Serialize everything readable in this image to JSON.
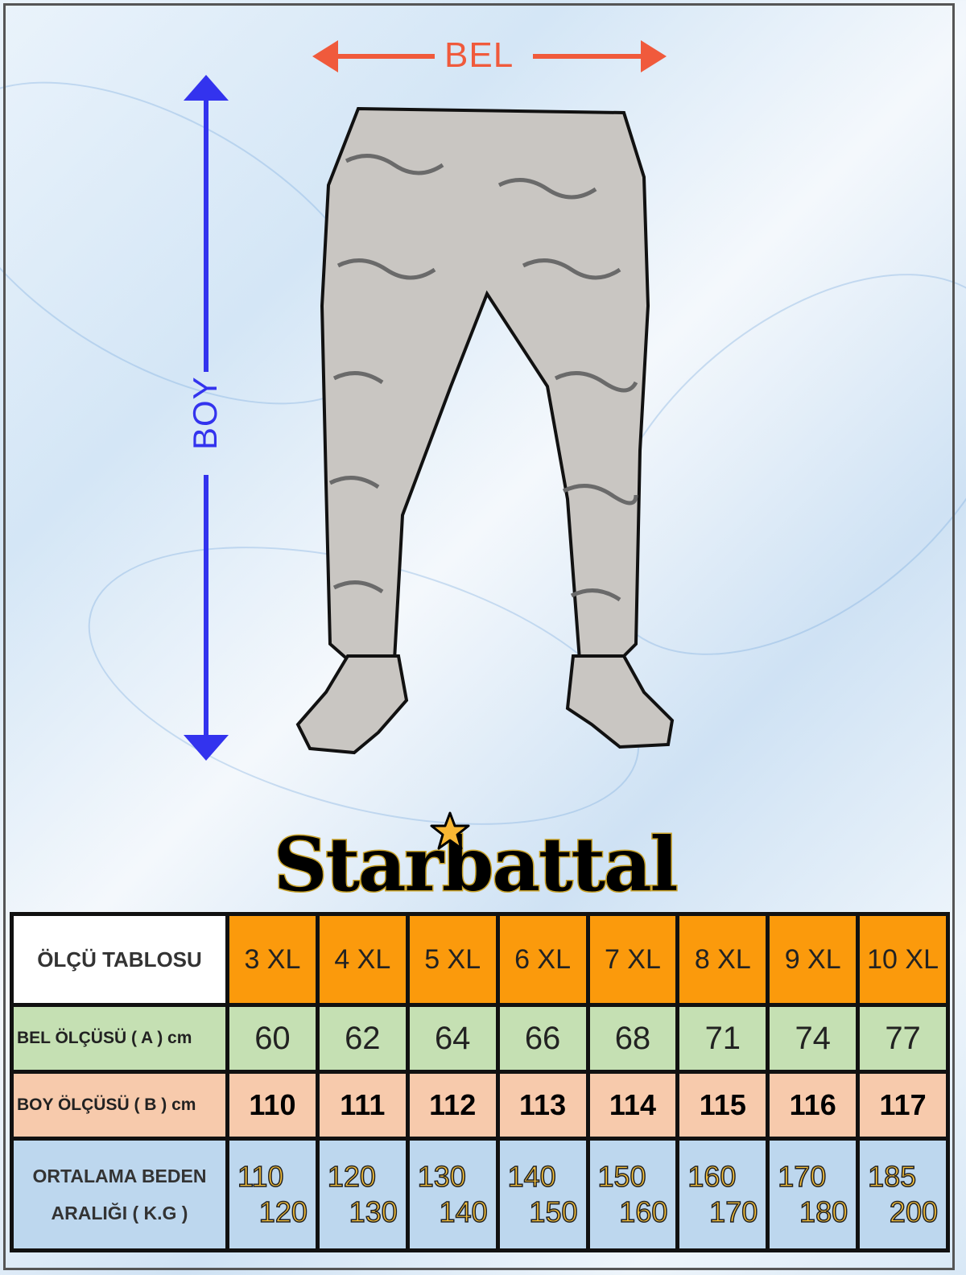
{
  "measures": {
    "waist_label": "BEL",
    "length_label": "BOY",
    "waist_arrow_color": "#f05a3c",
    "length_arrow_color": "#3333ee"
  },
  "brand": {
    "logo_text": "Starbattal",
    "star_color": "#f8b733"
  },
  "table": {
    "title": "ÖLÇÜ TABLOSU",
    "sizes": [
      "3 XL",
      "4 XL",
      "5 XL",
      "6 XL",
      "7 XL",
      "8 XL",
      "9 XL",
      "10 XL"
    ],
    "rows": [
      {
        "label": "BEL ÖLÇÜSÜ ( A ) cm",
        "color": "#c5e0b3",
        "values": [
          "60",
          "62",
          "64",
          "66",
          "68",
          "71",
          "74",
          "77"
        ]
      },
      {
        "label": "BOY ÖLÇÜSÜ ( B ) cm",
        "color": "#f7caac",
        "values": [
          "110",
          "111",
          "112",
          "113",
          "114",
          "115",
          "116",
          "117"
        ]
      }
    ],
    "weight_row": {
      "label_line1": "ORTALAMA BEDEN",
      "label_line2": "ARALIĞI (  K.G )",
      "color": "#bdd7ee",
      "ranges": [
        [
          "110",
          "120"
        ],
        [
          "120",
          "130"
        ],
        [
          "130",
          "140"
        ],
        [
          "140",
          "150"
        ],
        [
          "150",
          "160"
        ],
        [
          "160",
          "170"
        ],
        [
          "170",
          "180"
        ],
        [
          "185",
          "200"
        ]
      ]
    },
    "header_color": "#fb9a0c"
  }
}
